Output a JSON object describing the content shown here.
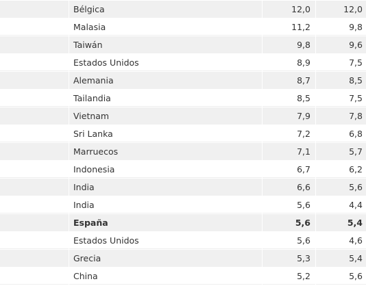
{
  "table": {
    "rows": [
      {
        "cells": [
          "Bélgica",
          "12,0",
          "12,0"
        ]
      },
      {
        "cells": [
          "Malasia",
          "11,2",
          "9,8"
        ]
      },
      {
        "cells": [
          "Taiwán",
          "9,8",
          "9,6"
        ]
      },
      {
        "cells": [
          "Estados Unidos",
          "8,9",
          "7,5"
        ]
      },
      {
        "cells": [
          "Alemania",
          "8,7",
          "8,5"
        ]
      },
      {
        "cells": [
          "Tailandia",
          "8,5",
          "7,5"
        ]
      },
      {
        "cells": [
          "Vietnam",
          "7,9",
          "7,8"
        ]
      },
      {
        "cells": [
          "Sri Lanka",
          "7,2",
          "6,8"
        ]
      },
      {
        "cells": [
          "Marruecos",
          "7,1",
          "5,7"
        ]
      },
      {
        "cells": [
          "Indonesia",
          "6,7",
          "6,2"
        ]
      },
      {
        "cells": [
          "India",
          "6,6",
          "5,6"
        ]
      },
      {
        "cells": [
          "India",
          "5,6",
          "4,4"
        ]
      },
      {
        "cells": [
          "España",
          "5,6",
          "5,4"
        ],
        "bold": true
      },
      {
        "cells": [
          "Estados Unidos",
          "5,6",
          "4,6"
        ]
      },
      {
        "cells": [
          "Grecia",
          "5,3",
          "5,4"
        ]
      },
      {
        "cells": [
          "China",
          "5,2",
          "5,6"
        ]
      }
    ]
  }
}
